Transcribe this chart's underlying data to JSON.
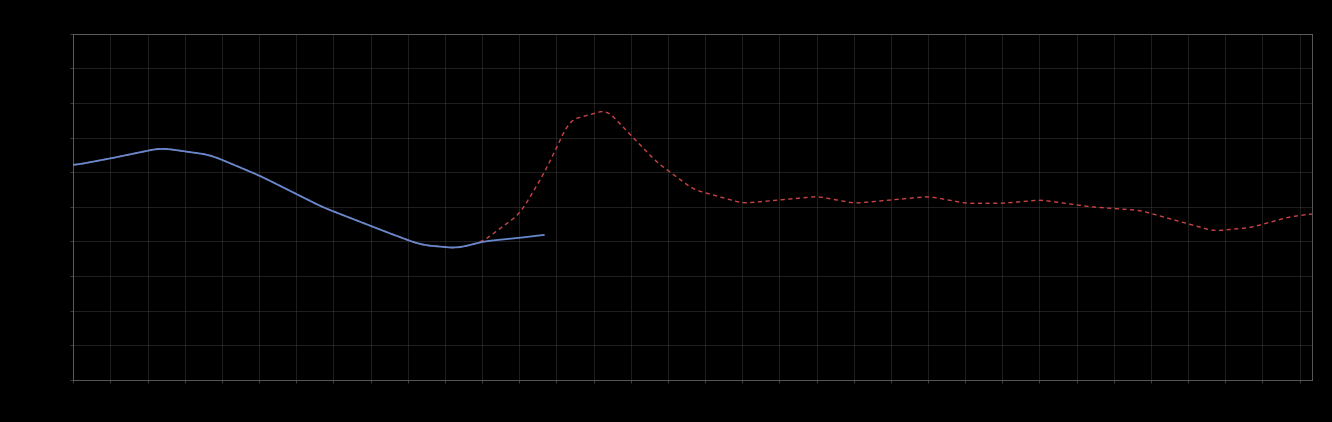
{
  "background_color": "#000000",
  "plot_bg_color": "#000000",
  "grid_color": "#444444",
  "blue_line_color": "#6688cc",
  "red_line_color": "#cc4444",
  "figsize": [
    13.32,
    4.22
  ],
  "dpi": 100,
  "xlim": [
    0,
    100
  ],
  "ylim": [
    0,
    100
  ],
  "grid_x_major": 3.0,
  "grid_y_major": 10.0,
  "blue_pts_x": [
    0,
    3,
    7,
    11,
    15,
    20,
    25,
    28,
    31,
    33,
    36,
    38
  ],
  "blue_pts_y": [
    62,
    64,
    67,
    65,
    59,
    50,
    43,
    39,
    38,
    40,
    41,
    42
  ],
  "red_pts_x": [
    0,
    3,
    7,
    11,
    15,
    20,
    25,
    28,
    31,
    33,
    36,
    38,
    40,
    43,
    47,
    50,
    54,
    57,
    60,
    63,
    66,
    69,
    72,
    75,
    78,
    82,
    86,
    89,
    92,
    95,
    98,
    100
  ],
  "red_pts_y": [
    62,
    64,
    67,
    65,
    59,
    50,
    43,
    39,
    38,
    40,
    48,
    60,
    75,
    78,
    63,
    55,
    51,
    52,
    53,
    51,
    52,
    53,
    51,
    51,
    52,
    50,
    49,
    46,
    43,
    44,
    47,
    48
  ],
  "blue_x_end": 38
}
